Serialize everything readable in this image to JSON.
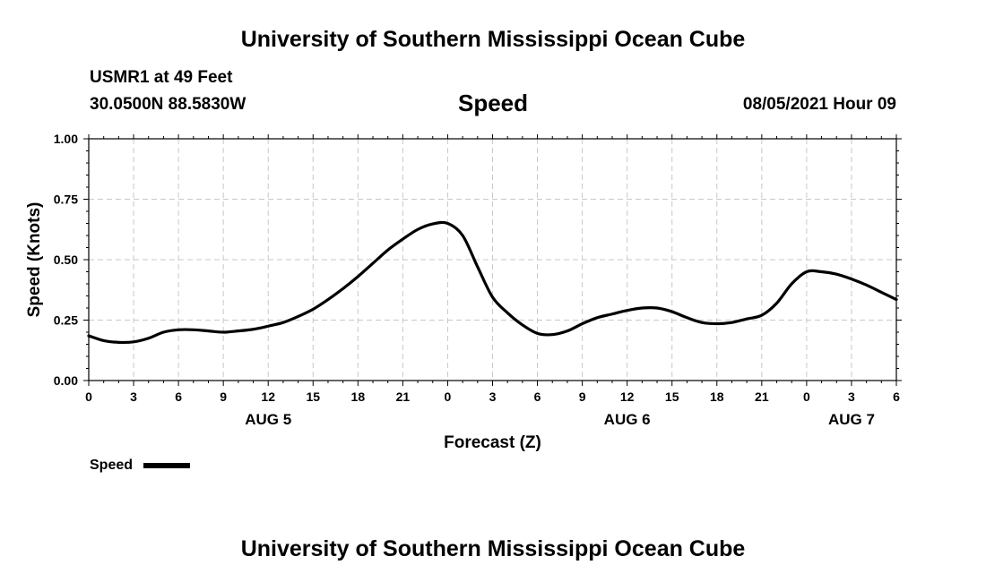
{
  "header": {
    "title": "University of Southern Mississippi Ocean Cube",
    "station": "USMR1 at 49 Feet",
    "coordinates": "30.0500N  88.5830W",
    "variable": "Speed",
    "datetime": "08/05/2021 Hour 09"
  },
  "footer": {
    "title": "University of Southern Mississippi Ocean Cube"
  },
  "chart_data": {
    "type": "line",
    "title": "Speed",
    "xlabel": "Forecast (Z)",
    "ylabel": "Speed (Knots)",
    "xlim": [
      0,
      54
    ],
    "ylim": [
      0,
      1.0
    ],
    "grid": true,
    "x_ticks": [
      0,
      3,
      6,
      9,
      12,
      15,
      18,
      21,
      24,
      27,
      30,
      33,
      36,
      39,
      42,
      45,
      48,
      51,
      54
    ],
    "x_tick_labels": [
      "0",
      "3",
      "6",
      "9",
      "12",
      "15",
      "18",
      "21",
      "0",
      "3",
      "6",
      "9",
      "12",
      "15",
      "18",
      "21",
      "0",
      "3",
      "6"
    ],
    "y_ticks": [
      0,
      0.25,
      0.5,
      0.75,
      1.0
    ],
    "y_tick_labels": [
      "0.00",
      "0.25",
      "0.50",
      "0.75",
      "1.00"
    ],
    "date_labels": [
      {
        "x": 12,
        "label": "AUG 5"
      },
      {
        "x": 36,
        "label": "AUG 6"
      },
      {
        "x": 51,
        "label": "AUG 7"
      }
    ],
    "legend": {
      "label": "Speed",
      "position": "bottom-left"
    },
    "series": [
      {
        "name": "Speed",
        "color": "#000000",
        "x": [
          0,
          1,
          2,
          3,
          4,
          5,
          6,
          7,
          8,
          9,
          10,
          11,
          12,
          13,
          14,
          15,
          16,
          17,
          18,
          19,
          20,
          21,
          22,
          23,
          24,
          25,
          26,
          27,
          28,
          29,
          30,
          31,
          32,
          33,
          34,
          35,
          36,
          37,
          38,
          39,
          40,
          41,
          42,
          43,
          44,
          45,
          46,
          47,
          48,
          49,
          50,
          51,
          52,
          53,
          54
        ],
        "values": [
          0.185,
          0.165,
          0.158,
          0.16,
          0.175,
          0.2,
          0.21,
          0.21,
          0.205,
          0.2,
          0.205,
          0.212,
          0.225,
          0.24,
          0.265,
          0.295,
          0.335,
          0.38,
          0.43,
          0.485,
          0.54,
          0.585,
          0.625,
          0.648,
          0.65,
          0.6,
          0.47,
          0.345,
          0.28,
          0.23,
          0.195,
          0.19,
          0.205,
          0.235,
          0.26,
          0.275,
          0.29,
          0.3,
          0.3,
          0.285,
          0.26,
          0.24,
          0.235,
          0.24,
          0.255,
          0.27,
          0.32,
          0.4,
          0.45,
          0.45,
          0.44,
          0.42,
          0.395,
          0.365,
          0.335
        ]
      }
    ]
  }
}
